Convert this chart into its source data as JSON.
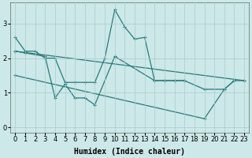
{
  "xlabel": "Humidex (Indice chaleur)",
  "bg_color": "#cce8e8",
  "grid_color": "#aacccc",
  "line_color": "#2a7a7a",
  "xlim": [
    -0.5,
    23.5
  ],
  "ylim": [
    -0.15,
    3.6
  ],
  "xticks": [
    0,
    1,
    2,
    3,
    4,
    5,
    6,
    7,
    8,
    9,
    10,
    11,
    12,
    13,
    14,
    15,
    16,
    17,
    18,
    19,
    20,
    21,
    22,
    23
  ],
  "yticks": [
    0,
    1,
    2,
    3
  ],
  "line1_x": [
    0,
    1,
    2,
    3,
    4,
    5,
    6,
    7,
    8,
    9,
    10,
    11,
    12,
    13,
    14,
    15,
    16,
    17
  ],
  "line1_y": [
    2.6,
    2.2,
    2.2,
    2.0,
    2.0,
    1.3,
    1.3,
    1.3,
    1.3,
    2.0,
    3.4,
    2.9,
    2.55,
    2.6,
    1.35,
    1.35,
    1.35,
    1.35
  ],
  "line2_x": [
    0,
    1,
    3,
    4,
    5,
    6,
    7,
    8,
    10,
    14,
    15,
    16,
    17,
    19,
    21,
    22
  ],
  "line2_y": [
    2.2,
    2.15,
    2.05,
    0.85,
    1.25,
    0.85,
    0.85,
    0.65,
    2.05,
    1.35,
    1.35,
    1.35,
    1.35,
    1.1,
    1.1,
    1.35
  ],
  "line3_x": [
    0,
    23
  ],
  "line3_y": [
    2.2,
    1.35
  ],
  "line4_x": [
    0,
    19,
    21,
    22,
    23
  ],
  "line4_y": [
    1.5,
    0.25,
    1.1,
    1.35,
    1.35
  ],
  "marker": "+",
  "linewidth": 0.9,
  "markersize": 3,
  "xlabel_fontsize": 7,
  "tick_fontsize": 6
}
